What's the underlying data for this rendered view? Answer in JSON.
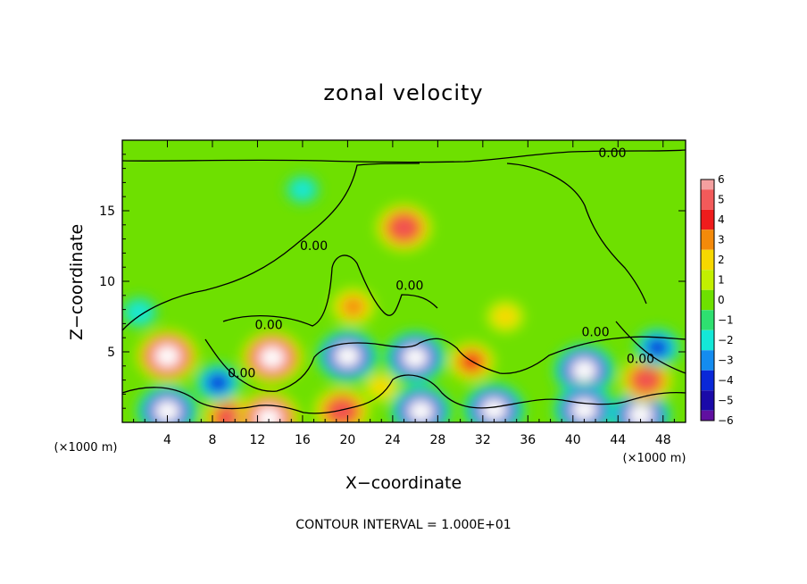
{
  "chart_data": {
    "type": "heatmap",
    "title": "zonal velocity",
    "xlabel": "X−coordinate",
    "ylabel": "Z−coordinate",
    "x_unit_left": "(×1000 m)",
    "x_unit_right": "(×1000 m)",
    "xlim": [
      0,
      50
    ],
    "ylim": [
      0,
      20
    ],
    "x_ticks": [
      4,
      8,
      12,
      16,
      20,
      24,
      28,
      32,
      36,
      40,
      44,
      48
    ],
    "x_tick_labels": [
      "4",
      "8",
      "12",
      "16",
      "20",
      "24",
      "28",
      "32",
      "36",
      "40",
      "44",
      "48"
    ],
    "y_ticks": [
      5,
      10,
      15
    ],
    "y_tick_labels": [
      "5",
      "10",
      "15"
    ],
    "colorbar": {
      "levels": [
        6,
        5,
        4,
        3,
        2,
        1,
        0,
        -1,
        -2,
        -3,
        -4,
        -5,
        -6
      ],
      "labels": [
        "6",
        "5",
        "4",
        "3",
        "2",
        "1",
        "0",
        "−1",
        "−2",
        "−3",
        "−4",
        "−5",
        "−6"
      ],
      "colors": [
        "#f4a0a0",
        "#f25a5a",
        "#ef1c1c",
        "#f48a0a",
        "#f7d800",
        "#c2f000",
        "#6ee000",
        "#2ee070",
        "#14e8d8",
        "#148cf0",
        "#0a28d8",
        "#1a0aa8",
        "#6010a0"
      ]
    },
    "background_value": 0.3,
    "features": [
      {
        "name": "upper-warm-core",
        "x": 25,
        "z": 13.8,
        "value": 5.5
      },
      {
        "name": "upper-left-cool",
        "x": 16,
        "z": 16.5,
        "value": -2
      },
      {
        "name": "left-edge-cool",
        "x": 1.5,
        "z": 7.8,
        "value": -2.5
      },
      {
        "name": "mid-warm-blob",
        "x": 20.5,
        "z": 8.2,
        "value": 3.5
      },
      {
        "name": "right-mid-warm",
        "x": 34,
        "z": 7.5,
        "value": 2.5
      },
      {
        "name": "lower-warm-1",
        "x": 4,
        "z": 4.7,
        "value": 6.5
      },
      {
        "name": "lower-cool-1",
        "x": 4,
        "z": 0.8,
        "value": -6.5
      },
      {
        "name": "lower-warm-2",
        "x": 9.5,
        "z": 0.3,
        "value": 5
      },
      {
        "name": "lower-cool-2",
        "x": 8.5,
        "z": 2.8,
        "value": -4
      },
      {
        "name": "lower-warm-3",
        "x": 13.3,
        "z": 4.6,
        "value": 6.5
      },
      {
        "name": "lower-warm-4",
        "x": 13,
        "z": 0.3,
        "value": 6.5
      },
      {
        "name": "lower-cool-3",
        "x": 20,
        "z": 4.7,
        "value": -6.5
      },
      {
        "name": "lower-warm-5",
        "x": 19.5,
        "z": 0.8,
        "value": 5.5
      },
      {
        "name": "lower-cool-4",
        "x": 26,
        "z": 4.6,
        "value": -6.5
      },
      {
        "name": "lower-cool-5",
        "x": 26.5,
        "z": 0.8,
        "value": -6.5
      },
      {
        "name": "lower-warm-6",
        "x": 23,
        "z": 2.5,
        "value": 2
      },
      {
        "name": "lower-warm-7",
        "x": 31,
        "z": 4.3,
        "value": 4
      },
      {
        "name": "lower-cool-6",
        "x": 33,
        "z": 0.9,
        "value": -6.5
      },
      {
        "name": "lower-cool-7",
        "x": 41,
        "z": 3.7,
        "value": -6.5
      },
      {
        "name": "lower-cool-8",
        "x": 41,
        "z": 0.9,
        "value": -6.5
      },
      {
        "name": "lower-cool-9",
        "x": 46,
        "z": 0.5,
        "value": -6.5
      },
      {
        "name": "lower-warm-8",
        "x": 46.5,
        "z": 3,
        "value": 5
      },
      {
        "name": "lower-cool-10",
        "x": 47.5,
        "z": 5.3,
        "value": -4
      }
    ],
    "contour_label": "0.00",
    "contour_labels": [
      {
        "text": "0.00",
        "x": 43.5,
        "z": 18.8
      },
      {
        "text": "0.00",
        "x": 17,
        "z": 12.2
      },
      {
        "text": "0.00",
        "x": 25.5,
        "z": 9.4
      },
      {
        "text": "0.00",
        "x": 13,
        "z": 6.6
      },
      {
        "text": "0.00",
        "x": 10.6,
        "z": 3.2
      },
      {
        "text": "0.00",
        "x": 42,
        "z": 6.1
      },
      {
        "text": "0.00",
        "x": 46,
        "z": 4.2
      }
    ],
    "footer": "CONTOUR INTERVAL = 1.000E+01"
  }
}
